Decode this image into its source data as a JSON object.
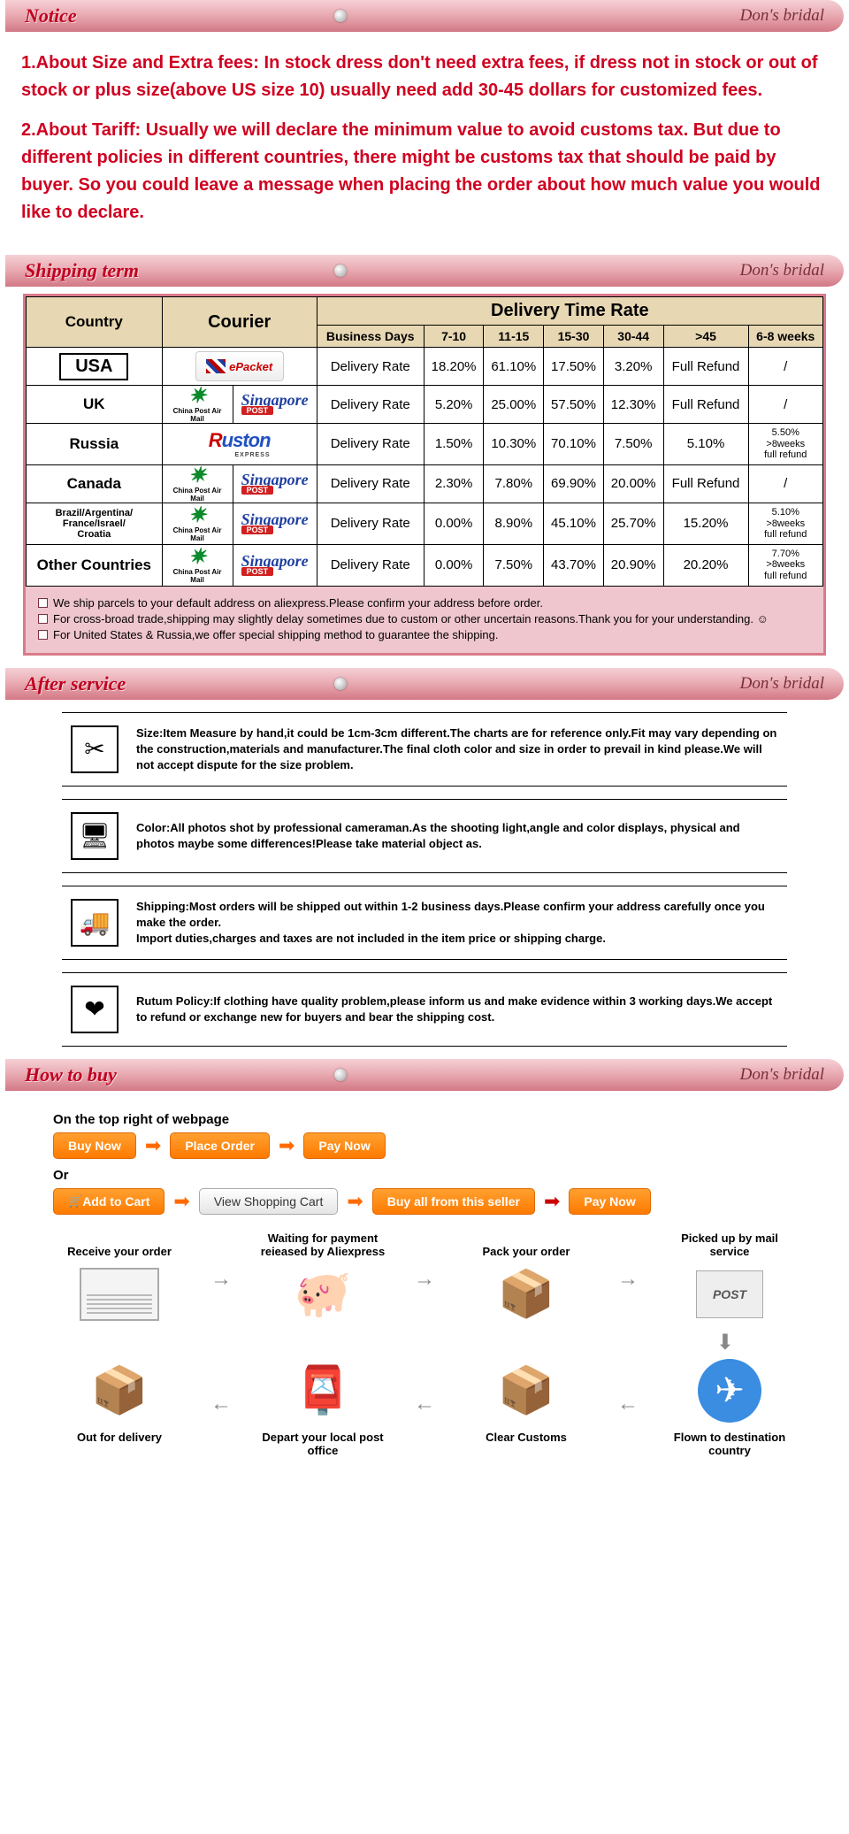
{
  "brand": "Don's bridal",
  "headers": {
    "notice": "Notice",
    "shipping": "Shipping term",
    "after": "After service",
    "how": "How to buy"
  },
  "notice": {
    "p1": "1.About Size and Extra fees: In stock dress don't need extra fees, if dress not in stock or out of stock or plus size(above US size 10) usually need add 30-45 dollars for customized fees.",
    "p2": "2.About Tariff: Usually we will declare the minimum value to avoid customs tax. But due to different policies in different countries, there might be customs tax that should be paid by buyer. So you could leave a message when placing the order about how much value you would like to declare."
  },
  "ship_table": {
    "header": {
      "country": "Country",
      "courier": "Courier",
      "delivery": "Delivery Time Rate",
      "business": "Business Days",
      "cols": [
        "7-10",
        "11-15",
        "15-30",
        "30-44",
        ">45",
        "6-8 weeks"
      ]
    },
    "rows": [
      {
        "country": "USA",
        "courier": "ePacket",
        "label": "Delivery Rate",
        "v": [
          "18.20%",
          "61.10%",
          "17.50%",
          "3.20%",
          "Full Refund",
          "/"
        ]
      },
      {
        "country": "UK",
        "courier": "cpam_sg",
        "label": "Delivery Rate",
        "v": [
          "5.20%",
          "25.00%",
          "57.50%",
          "12.30%",
          "Full Refund",
          "/"
        ]
      },
      {
        "country": "Russia",
        "courier": "ruston",
        "label": "Delivery Rate",
        "v": [
          "1.50%",
          "10.30%",
          "70.10%",
          "7.50%",
          "5.10%",
          "5.50%\n>8weeks\nfull refund"
        ]
      },
      {
        "country": "Canada",
        "courier": "cpam_sg",
        "label": "Delivery Rate",
        "v": [
          "2.30%",
          "7.80%",
          "69.90%",
          "20.00%",
          "Full Refund",
          "/"
        ]
      },
      {
        "country": "Brazil/Argentina/\nFrance/Israel/\nCroatia",
        "courier": "cpam_sg",
        "label": "Delivery Rate",
        "v": [
          "0.00%",
          "8.90%",
          "45.10%",
          "25.70%",
          "15.20%",
          "5.10%\n>8weeks\nfull refund"
        ]
      },
      {
        "country": "Other Countries",
        "courier": "cpam_sg",
        "label": "Delivery Rate",
        "v": [
          "0.00%",
          "7.50%",
          "43.70%",
          "20.90%",
          "20.20%",
          "7.70%\n>8weeks\nfull refund"
        ]
      }
    ],
    "notes": [
      "We ship parcels to your default address on aliexpress.Please confirm your address before order.",
      "For cross-broad trade,shipping may slightly delay sometimes due to custom or other uncertain reasons.Thank you for your understanding. ☺",
      "For United States & Russia,we offer special shipping method to guarantee the shipping."
    ]
  },
  "after_service": [
    {
      "icon": "✂",
      "text": "Size:Item Measure by hand,it could be 1cm-3cm different.The charts are for reference only.Fit may vary depending on the construction,materials and manufacturer.The final cloth color and size in order to prevail in kind please.We will not accept dispute for the size problem."
    },
    {
      "icon": "🖥",
      "text": "Color:All photos shot by professional cameraman.As the shooting light,angle and color displays, physical and photos maybe some differences!Please take material object as."
    },
    {
      "icon": "🚚",
      "text": "Shipping:Most orders will be shipped out within 1-2 business days.Please confirm your address carefully once you make the order.\nImport duties,charges and taxes are not included in the item price or shipping charge."
    },
    {
      "icon": "❤",
      "text": "Rutum Policy:If clothing have quality problem,please inform us and make evidence within 3 working days.We accept to refund or exchange new for buyers and bear the shipping cost."
    }
  ],
  "how": {
    "top_label": "On the top right of webpage",
    "or": "Or",
    "flow1": [
      "Buy Now",
      "Place Order",
      "Pay Now"
    ],
    "flow2": {
      "add": "Add to Cart",
      "view": "View Shopping Cart",
      "buy": "Buy all from this seller",
      "pay": "Pay Now"
    },
    "steps_top": [
      {
        "cap": "Receive your order",
        "pic": "cheque"
      },
      {
        "cap": "Waiting for payment reieased by Aliexpress",
        "pic": "piggy"
      },
      {
        "cap": "Pack your order",
        "pic": "box"
      },
      {
        "cap": "Picked up by mail service",
        "pic": "post"
      }
    ],
    "steps_bot": [
      {
        "cap": "Out for delivery",
        "pic": "trolley"
      },
      {
        "cap": "Depart your local post office",
        "pic": "mailbox"
      },
      {
        "cap": "Clear Customs",
        "pic": "box"
      },
      {
        "cap": "Flown to destination country",
        "pic": "plane"
      }
    ]
  },
  "colors": {
    "accent_red": "#d00020",
    "header_grad_top": "#f5d0d5",
    "header_grad_bot": "#d27885",
    "btn_orange": "#ff7a00",
    "note_bg": "#efc6ce",
    "table_head": "#e7d7b3"
  }
}
